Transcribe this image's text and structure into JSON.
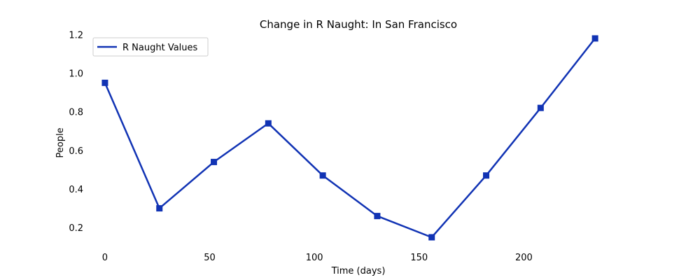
{
  "chart_data": {
    "type": "line",
    "title": "Change in R Naught: In San Francisco",
    "xlabel": "Time (days)",
    "ylabel": "People",
    "xlim": [
      -8,
      250
    ],
    "ylim": [
      0.11,
      1.205
    ],
    "xticks": [
      0,
      50,
      100,
      150,
      200
    ],
    "yticks": [
      0.2,
      0.4,
      0.6,
      0.8,
      1.0,
      1.2
    ],
    "ytick_labels": [
      "0.2",
      "0.4",
      "0.6",
      "0.8",
      "1.0",
      "1.2"
    ],
    "grid": false,
    "legend_position": "top-left",
    "series": [
      {
        "name": "R Naught Values",
        "color": "#1133b4",
        "marker": "square",
        "x": [
          0,
          26,
          52,
          78,
          104,
          130,
          156,
          182,
          208,
          234
        ],
        "y": [
          0.95,
          0.3,
          0.54,
          0.74,
          0.47,
          0.26,
          0.15,
          0.47,
          0.82,
          1.18
        ]
      }
    ]
  }
}
